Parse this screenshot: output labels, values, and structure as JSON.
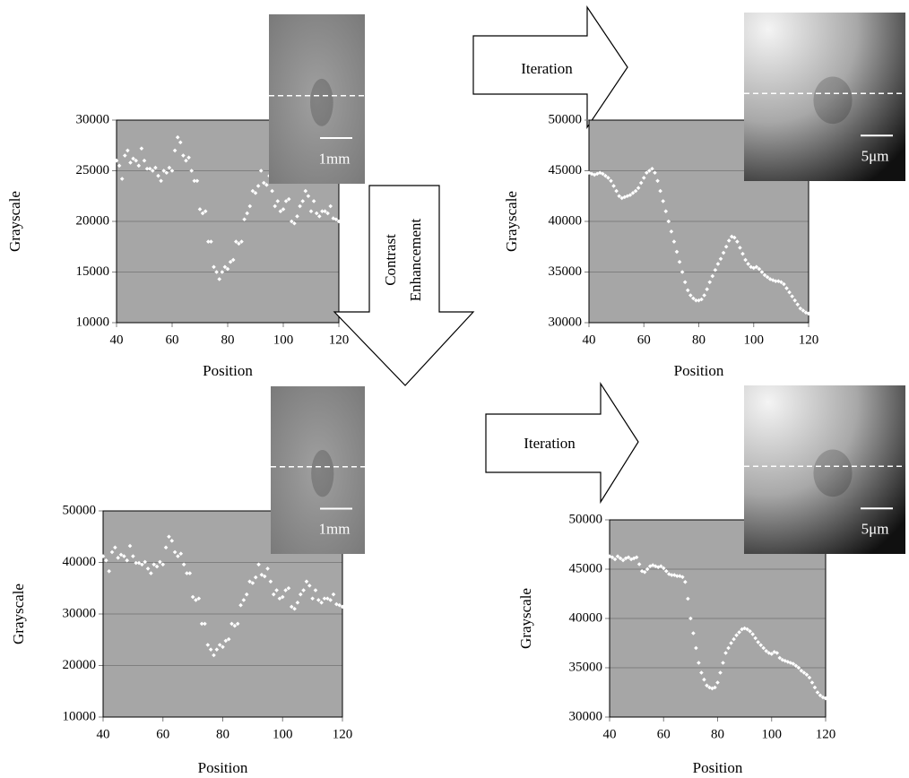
{
  "annotations": {
    "iteration_top": "Iteration",
    "contrast": [
      "Contrast",
      "Enhancement"
    ],
    "iteration_bottom": "Iteration"
  },
  "chart_data": [
    {
      "type": "scatter",
      "x_label": "Position",
      "y_label": "Grayscale",
      "scale_label": "1mm",
      "color": "#ffffff",
      "grid": true,
      "xlim": [
        40,
        120
      ],
      "xticks": [
        40,
        60,
        80,
        100,
        120
      ],
      "ylim": [
        10000,
        30000
      ],
      "yticks": [
        10000,
        15000,
        20000,
        25000,
        30000
      ],
      "x": [
        40,
        41,
        42,
        43,
        44,
        45,
        46,
        47,
        48,
        49,
        50,
        51,
        52,
        53,
        54,
        55,
        56,
        57,
        58,
        59,
        60,
        61,
        62,
        63,
        64,
        65,
        66,
        67,
        68,
        69,
        70,
        71,
        72,
        73,
        74,
        75,
        76,
        77,
        78,
        79,
        80,
        81,
        82,
        83,
        84,
        85,
        86,
        87,
        88,
        89,
        90,
        91,
        92,
        93,
        94,
        95,
        96,
        97,
        98,
        99,
        100,
        101,
        102,
        103,
        104,
        105,
        106,
        107,
        108,
        109,
        110,
        111,
        112,
        113,
        114,
        115,
        116,
        117,
        118,
        119,
        120
      ],
      "values": [
        26000,
        25500,
        24200,
        26500,
        27000,
        25800,
        26200,
        26000,
        25500,
        27200,
        26000,
        25200,
        25200,
        25000,
        25300,
        24500,
        24000,
        25000,
        24800,
        25300,
        25000,
        27000,
        28300,
        27800,
        26500,
        26000,
        26300,
        25000,
        24000,
        24000,
        21200,
        20800,
        21000,
        18000,
        18000,
        15500,
        15000,
        14300,
        15000,
        15500,
        15300,
        16000,
        16200,
        18000,
        17800,
        18000,
        20200,
        20800,
        21500,
        23000,
        22800,
        23500,
        25000,
        23800,
        23600,
        24500,
        23000,
        21500,
        22000,
        21000,
        21200,
        22000,
        22200,
        20000,
        19800,
        20500,
        21500,
        22000,
        23000,
        22500,
        21000,
        22000,
        20800,
        20500,
        21000,
        21000,
        20800,
        21500,
        20300,
        20200,
        20000
      ]
    },
    {
      "type": "scatter",
      "x_label": "Position",
      "y_label": "Grayscale",
      "scale_label": "5μm",
      "color": "#ffffff",
      "grid": true,
      "xlim": [
        40,
        120
      ],
      "xticks": [
        40,
        60,
        80,
        100,
        120
      ],
      "ylim": [
        30000,
        50000
      ],
      "yticks": [
        30000,
        35000,
        40000,
        45000,
        50000
      ],
      "x": [
        40,
        41,
        42,
        43,
        44,
        45,
        46,
        47,
        48,
        49,
        50,
        51,
        52,
        53,
        54,
        55,
        56,
        57,
        58,
        59,
        60,
        61,
        62,
        63,
        64,
        65,
        66,
        67,
        68,
        69,
        70,
        71,
        72,
        73,
        74,
        75,
        76,
        77,
        78,
        79,
        80,
        81,
        82,
        83,
        84,
        85,
        86,
        87,
        88,
        89,
        90,
        91,
        92,
        93,
        94,
        95,
        96,
        97,
        98,
        99,
        100,
        101,
        102,
        103,
        104,
        105,
        106,
        107,
        108,
        109,
        110,
        111,
        112,
        113,
        114,
        115,
        116,
        117,
        118,
        119,
        120
      ],
      "values": [
        44800,
        44700,
        44600,
        44700,
        44800,
        44700,
        44500,
        44300,
        44000,
        43500,
        43000,
        42500,
        42300,
        42400,
        42500,
        42600,
        42800,
        43000,
        43300,
        43800,
        44300,
        44800,
        45000,
        45200,
        44800,
        44000,
        43000,
        42000,
        41000,
        40000,
        39000,
        38000,
        37000,
        36000,
        35000,
        34000,
        33200,
        32700,
        32400,
        32200,
        32200,
        32300,
        32700,
        33300,
        34000,
        34600,
        35200,
        35800,
        36300,
        36900,
        37500,
        38100,
        38500,
        38400,
        38000,
        37400,
        36800,
        36200,
        35800,
        35500,
        35400,
        35500,
        35300,
        35000,
        34700,
        34500,
        34300,
        34200,
        34100,
        34100,
        34000,
        33800,
        33400,
        33000,
        32600,
        32200,
        31800,
        31400,
        31200,
        31000,
        30900
      ]
    },
    {
      "type": "scatter",
      "x_label": "Position",
      "y_label": "Grayscale",
      "scale_label": "1mm",
      "color": "#ffffff",
      "grid": true,
      "xlim": [
        40,
        120
      ],
      "xticks": [
        40,
        60,
        80,
        100,
        120
      ],
      "ylim": [
        10000,
        50000
      ],
      "yticks": [
        10000,
        20000,
        30000,
        40000,
        50000
      ],
      "x": [
        40,
        41,
        42,
        43,
        44,
        45,
        46,
        47,
        48,
        49,
        50,
        51,
        52,
        53,
        54,
        55,
        56,
        57,
        58,
        59,
        60,
        61,
        62,
        63,
        64,
        65,
        66,
        67,
        68,
        69,
        70,
        71,
        72,
        73,
        74,
        75,
        76,
        77,
        78,
        79,
        80,
        81,
        82,
        83,
        84,
        85,
        86,
        87,
        88,
        89,
        90,
        91,
        92,
        93,
        94,
        95,
        96,
        97,
        98,
        99,
        100,
        101,
        102,
        103,
        104,
        105,
        106,
        107,
        108,
        109,
        110,
        111,
        112,
        113,
        114,
        115,
        116,
        117,
        118,
        119,
        120
      ],
      "values": [
        41200,
        40400,
        38300,
        42000,
        42900,
        40900,
        41500,
        41200,
        40400,
        43200,
        41200,
        39900,
        39900,
        39600,
        40100,
        38800,
        37900,
        39600,
        39200,
        40100,
        39600,
        42900,
        45000,
        44200,
        42000,
        41200,
        41700,
        39600,
        37900,
        37900,
        33300,
        32700,
        33000,
        28100,
        28100,
        24000,
        23100,
        22000,
        23100,
        24000,
        23600,
        24800,
        25100,
        28100,
        27700,
        28100,
        31700,
        32700,
        33800,
        36300,
        36000,
        37100,
        39600,
        37600,
        37300,
        38800,
        36300,
        33800,
        34600,
        33000,
        33300,
        34600,
        35000,
        31400,
        31000,
        32200,
        33800,
        34600,
        36300,
        35500,
        33000,
        34600,
        32700,
        32200,
        33000,
        33000,
        32700,
        33800,
        31900,
        31700,
        31400
      ]
    },
    {
      "type": "scatter",
      "x_label": "Position",
      "y_label": "Grayscale",
      "scale_label": "5μm",
      "color": "#ffffff",
      "grid": true,
      "xlim": [
        40,
        120
      ],
      "xticks": [
        40,
        60,
        80,
        100,
        120
      ],
      "ylim": [
        30000,
        50000
      ],
      "yticks": [
        30000,
        35000,
        40000,
        45000,
        50000
      ],
      "x": [
        40,
        41,
        42,
        43,
        44,
        45,
        46,
        47,
        48,
        49,
        50,
        51,
        52,
        53,
        54,
        55,
        56,
        57,
        58,
        59,
        60,
        61,
        62,
        63,
        64,
        65,
        66,
        67,
        68,
        69,
        70,
        71,
        72,
        73,
        74,
        75,
        76,
        77,
        78,
        79,
        80,
        81,
        82,
        83,
        84,
        85,
        86,
        87,
        88,
        89,
        90,
        91,
        92,
        93,
        94,
        95,
        96,
        97,
        98,
        99,
        100,
        101,
        102,
        103,
        104,
        105,
        106,
        107,
        108,
        109,
        110,
        111,
        112,
        113,
        114,
        115,
        116,
        117,
        118,
        119,
        120
      ],
      "values": [
        46300,
        46200,
        46000,
        46300,
        46100,
        45900,
        46100,
        46200,
        46000,
        46100,
        46200,
        45500,
        44800,
        44700,
        45000,
        45300,
        45400,
        45300,
        45200,
        45300,
        45100,
        44800,
        44500,
        44400,
        44400,
        44300,
        44300,
        44200,
        43700,
        42000,
        40000,
        38500,
        37000,
        35500,
        34500,
        33800,
        33200,
        33000,
        32900,
        33000,
        33500,
        34500,
        35500,
        36500,
        37000,
        37500,
        37900,
        38300,
        38600,
        38900,
        39000,
        38900,
        38700,
        38400,
        38000,
        37600,
        37300,
        37000,
        36700,
        36500,
        36400,
        36600,
        36500,
        36000,
        35800,
        35700,
        35600,
        35500,
        35400,
        35200,
        35000,
        34700,
        34500,
        34300,
        34000,
        33500,
        33000,
        32500,
        32200,
        32000,
        31900
      ]
    }
  ]
}
